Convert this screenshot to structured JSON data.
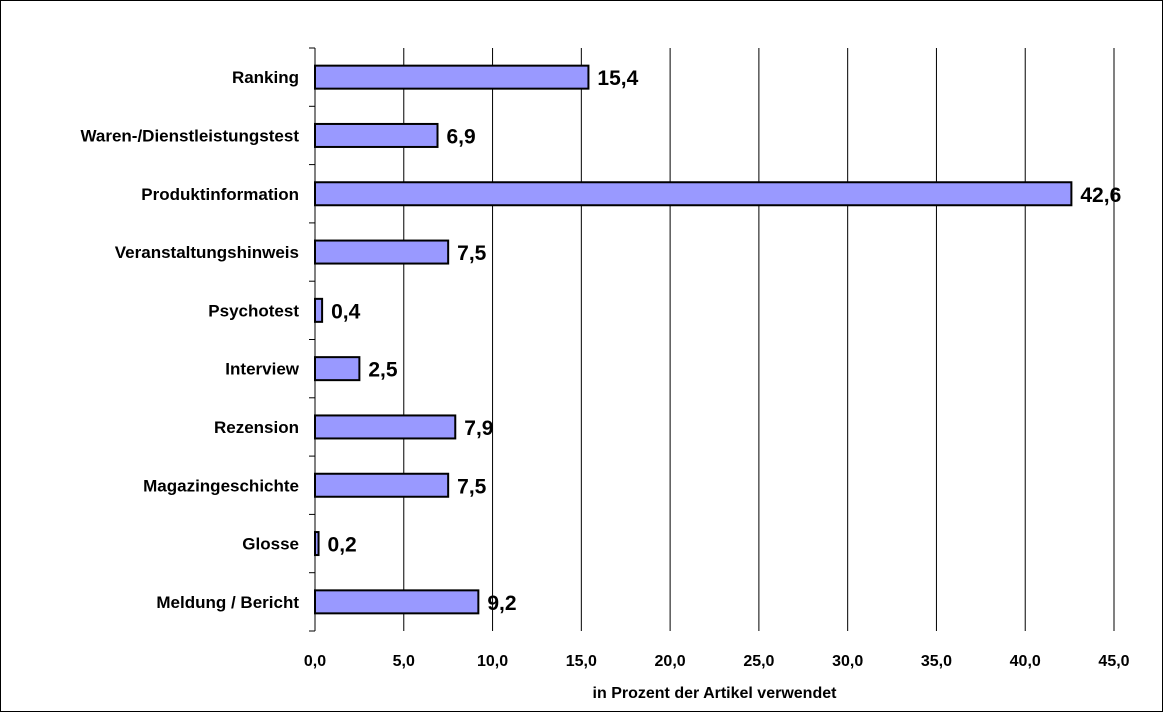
{
  "chart_data": {
    "type": "bar",
    "orientation": "horizontal",
    "categories": [
      "Ranking",
      "Waren-/Dienstleistungstest",
      "Produktinformation",
      "Veranstaltungshinweis",
      "Psychotest",
      "Interview",
      "Rezension",
      "Magazingeschichte",
      "Glosse",
      "Meldung / Bericht"
    ],
    "values": [
      15.4,
      6.9,
      42.6,
      7.5,
      0.4,
      2.5,
      7.9,
      7.5,
      0.2,
      9.2
    ],
    "value_labels": [
      "15,4",
      "6,9",
      "42,6",
      "7,5",
      "0,4",
      "2,5",
      "7,9",
      "7,5",
      "0,2",
      "9,2"
    ],
    "xlim": [
      0,
      45
    ],
    "xticks": [
      0,
      5,
      10,
      15,
      20,
      25,
      30,
      35,
      40,
      45
    ],
    "xtick_labels": [
      "0,0",
      "5,0",
      "10,0",
      "15,0",
      "20,0",
      "25,0",
      "30,0",
      "35,0",
      "40,0",
      "45,0"
    ],
    "xlabel": "in Prozent der Artikel verwendet",
    "ylabel": "",
    "title": "",
    "grid": "vertical",
    "legend": "none",
    "colors": {
      "bar_fill": "#9999ff",
      "bar_stroke": "#000000",
      "grid": "#000000",
      "background": "#ffffff"
    }
  }
}
